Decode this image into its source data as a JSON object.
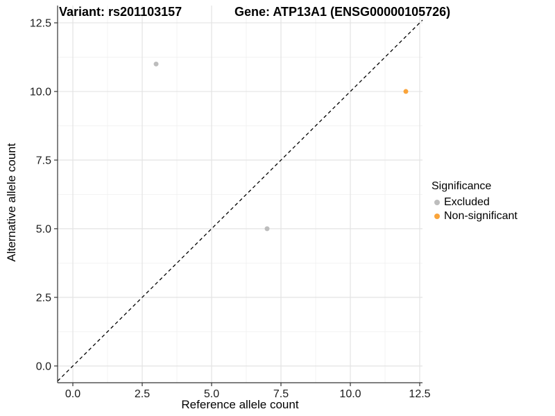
{
  "title": {
    "variant": "Variant: rs201103157",
    "gene": "Gene: ATP13A1 (ENSG00000105726)"
  },
  "axes": {
    "x_label": "Reference allele count",
    "y_label": "Alternative allele count"
  },
  "legend": {
    "title": "Significance",
    "items": [
      {
        "label": "Excluded",
        "color": "#BDBDBD"
      },
      {
        "label": "Non-significant",
        "color": "#FAA43A"
      }
    ]
  },
  "colors": {
    "background": "#FFFFFF",
    "grid_major": "#E3E3E3",
    "grid_minor": "#F0F0F0",
    "axis_line": "#333333",
    "tick_text": "#1A1A1A",
    "identity_line": "#000000",
    "excluded_point": "#BDBDBD",
    "non_significant_point": "#FAA43A"
  },
  "chart_data": {
    "type": "scatter",
    "title": "Variant: rs201103157    Gene: ATP13A1 (ENSG00000105726)",
    "xlabel": "Reference allele count",
    "ylabel": "Alternative allele count",
    "xlim": [
      -0.55,
      12.6
    ],
    "ylim": [
      -0.61,
      13.13
    ],
    "x_ticks": [
      0.0,
      2.5,
      5.0,
      7.5,
      10.0,
      12.5
    ],
    "x_tick_labels": [
      "0.0",
      "2.5",
      "5.0",
      "7.5",
      "10.0",
      "12.5"
    ],
    "y_ticks": [
      0.0,
      2.5,
      5.0,
      7.5,
      10.0,
      12.5
    ],
    "y_tick_labels": [
      "0.0",
      "2.5",
      "5.0",
      "7.5",
      "10.0",
      "12.5"
    ],
    "x_minor_ticks": [
      1.25,
      3.75,
      6.25,
      8.75,
      11.25
    ],
    "y_minor_ticks": [
      1.25,
      3.75,
      6.25,
      8.75,
      11.25
    ],
    "grid": true,
    "legend_title": "Significance",
    "legend_position": "right",
    "reference_line": {
      "type": "identity",
      "intercept": 0,
      "slope": 1,
      "style": "dashed",
      "color": "#000000"
    },
    "series": [
      {
        "name": "Excluded",
        "color": "#BDBDBD",
        "points": [
          {
            "x": 3,
            "y": 11
          },
          {
            "x": 7,
            "y": 5
          }
        ]
      },
      {
        "name": "Non-significant",
        "color": "#FAA43A",
        "points": [
          {
            "x": 12,
            "y": 10
          }
        ]
      }
    ]
  }
}
